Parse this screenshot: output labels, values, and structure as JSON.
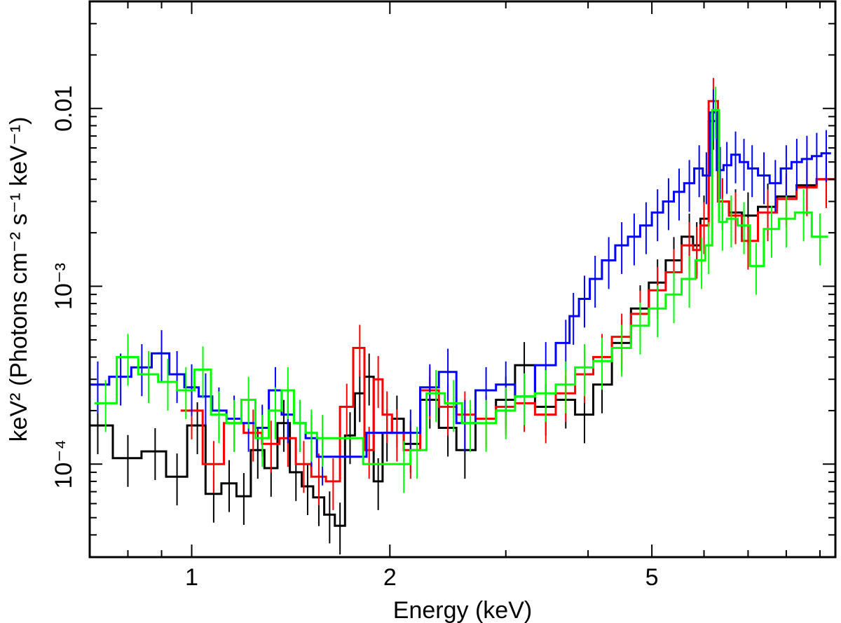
{
  "chart_data": {
    "type": "line",
    "title": "",
    "xlabel": "Energy (keV)",
    "ylabel": "keV² (Photons cm⁻² s⁻¹ keV⁻¹)",
    "xscale": "log",
    "yscale": "log",
    "xlim": [
      0.7,
      9.5
    ],
    "ylim": [
      3e-05,
      0.04
    ],
    "x_ticks": [
      {
        "value": 1,
        "label": "1"
      },
      {
        "value": 2,
        "label": "2"
      },
      {
        "value": 5,
        "label": "5"
      }
    ],
    "y_ticks": [
      {
        "value": 0.0001,
        "label": "10⁻⁴"
      },
      {
        "value": 0.001,
        "label": "10⁻³"
      },
      {
        "value": 0.01,
        "label": "0.01"
      }
    ],
    "grid": false,
    "series": [
      {
        "color": "#000000",
        "x": [
          0.72,
          0.8,
          0.88,
          0.95,
          1.02,
          1.08,
          1.14,
          1.2,
          1.26,
          1.32,
          1.38,
          1.44,
          1.5,
          1.56,
          1.62,
          1.68,
          1.74,
          1.8,
          1.86,
          1.92,
          1.98,
          2.05,
          2.15,
          2.3,
          2.45,
          2.6,
          2.8,
          3.0,
          3.2,
          3.45,
          3.7,
          3.95,
          4.2,
          4.5,
          4.8,
          5.1,
          5.4,
          5.7,
          5.85,
          6.0,
          6.2,
          6.4,
          6.7,
          7.0,
          7.5,
          8.0,
          8.6,
          9.2
        ],
        "y": [
          0.000165,
          0.000108,
          0.000118,
          8.5e-05,
          0.000165,
          6.8e-05,
          7.8e-05,
          6.6e-05,
          0.00012,
          9.5e-05,
          0.00017,
          9e-05,
          7.5e-05,
          6.5e-05,
          5.2e-05,
          4.5e-05,
          0.000145,
          0.00025,
          0.00031,
          8e-05,
          0.00015,
          0.00018,
          0.00013,
          0.00023,
          0.00016,
          0.00012,
          0.00018,
          0.00023,
          0.00036,
          0.00021,
          0.00023,
          0.00019,
          0.00028,
          0.00048,
          0.00075,
          0.00105,
          0.0014,
          0.0019,
          0.0017,
          0.0024,
          0.0085,
          0.003,
          0.0026,
          0.0025,
          0.0028,
          0.0032,
          0.0037,
          0.004
        ]
      },
      {
        "color": "#ff0000",
        "x": [
          1.0,
          1.08,
          1.16,
          1.24,
          1.32,
          1.4,
          1.48,
          1.56,
          1.64,
          1.72,
          1.8,
          1.86,
          1.92,
          1.98,
          2.05,
          2.15,
          2.3,
          2.45,
          2.6,
          2.8,
          3.0,
          3.2,
          3.45,
          3.7,
          3.95,
          4.2,
          4.5,
          4.8,
          5.1,
          5.4,
          5.7,
          5.85,
          6.0,
          6.2,
          6.4,
          6.7,
          7.0,
          7.5,
          8.0,
          8.6,
          9.2
        ],
        "y": [
          0.0002,
          0.0001,
          0.00017,
          0.00015,
          0.00013,
          0.00014,
          0.0001,
          8.5e-05,
          8e-05,
          0.00021,
          0.00045,
          0.00012,
          0.0003,
          0.00019,
          0.00015,
          0.00012,
          0.00026,
          0.00021,
          0.00019,
          0.00018,
          0.00021,
          0.00022,
          0.00019,
          0.00025,
          0.00032,
          0.0004,
          0.00052,
          0.0007,
          0.00095,
          0.0012,
          0.0017,
          0.0016,
          0.0022,
          0.011,
          0.003,
          0.0025,
          0.0018,
          0.0026,
          0.0031,
          0.0036,
          0.004
        ]
      },
      {
        "color": "#0000ff",
        "x": [
          0.72,
          0.78,
          0.84,
          0.9,
          0.95,
          1.0,
          1.05,
          1.1,
          1.16,
          1.22,
          1.28,
          1.34,
          1.4,
          1.46,
          1.52,
          1.58,
          2.15,
          2.3,
          2.45,
          2.6,
          2.8,
          3.0,
          3.2,
          3.45,
          3.7,
          3.8,
          3.95,
          4.1,
          4.3,
          4.5,
          4.7,
          4.9,
          5.1,
          5.3,
          5.5,
          5.7,
          5.9,
          6.05,
          6.2,
          6.35,
          6.5,
          6.7,
          6.9,
          7.1,
          7.4,
          7.7,
          8.0,
          8.3,
          8.6,
          8.9,
          9.2
        ],
        "y": [
          0.00028,
          0.00031,
          0.00035,
          0.00042,
          0.00032,
          0.00027,
          0.00024,
          0.0002,
          0.00018,
          0.00017,
          0.00016,
          0.00026,
          0.00019,
          0.00017,
          0.00014,
          0.00011,
          0.00015,
          0.00027,
          0.00033,
          0.00017,
          0.00026,
          0.00028,
          0.00024,
          0.00036,
          0.00048,
          0.00068,
          0.00085,
          0.0011,
          0.0014,
          0.0017,
          0.0019,
          0.0022,
          0.0026,
          0.003,
          0.0034,
          0.0038,
          0.0046,
          0.0042,
          0.0095,
          0.0045,
          0.0048,
          0.0055,
          0.005,
          0.0046,
          0.0042,
          0.0038,
          0.0046,
          0.005,
          0.0052,
          0.0054,
          0.0056
        ]
      },
      {
        "color": "#00ff00",
        "x": [
          0.74,
          0.8,
          0.86,
          0.92,
          0.98,
          1.04,
          1.1,
          1.16,
          1.22,
          1.28,
          1.34,
          1.4,
          1.46,
          1.52,
          1.58,
          2.1,
          2.2,
          2.35,
          2.5,
          2.65,
          2.8,
          3.0,
          3.2,
          3.45,
          3.7,
          3.95,
          4.2,
          4.5,
          4.8,
          5.1,
          5.4,
          5.7,
          5.95,
          6.1,
          6.25,
          6.4,
          6.6,
          6.9,
          7.2,
          7.6,
          8.0,
          8.5,
          9.0
        ],
        "y": [
          0.00022,
          0.0004,
          0.00032,
          0.00029,
          0.00026,
          0.00034,
          0.00019,
          0.00017,
          0.00023,
          0.00014,
          0.0002,
          0.00026,
          0.00017,
          0.00015,
          0.00014,
          0.0001,
          0.00012,
          0.00025,
          0.00022,
          0.00017,
          0.00017,
          0.0002,
          0.00024,
          0.00025,
          0.00028,
          0.00035,
          0.00038,
          0.00045,
          0.0006,
          0.00075,
          0.0009,
          0.0011,
          0.0014,
          0.0017,
          0.0098,
          0.0023,
          0.0024,
          0.0022,
          0.0013,
          0.0021,
          0.0024,
          0.0026,
          0.0019
        ]
      }
    ]
  }
}
